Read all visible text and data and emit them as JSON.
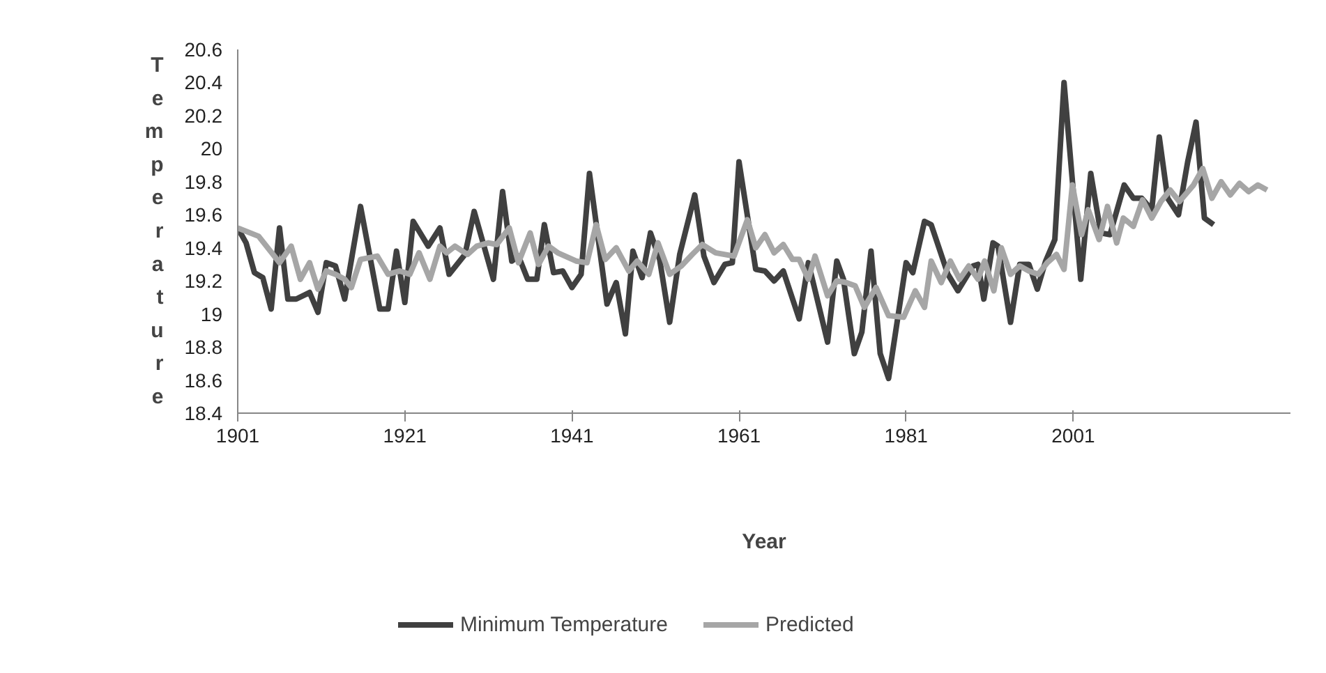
{
  "chart_data": {
    "type": "line",
    "xlabel": "Year",
    "ylabel": "Temperature",
    "xlim": [
      1901,
      2027
    ],
    "xticks": [
      1901,
      1921,
      1941,
      1961,
      1981,
      2001
    ],
    "ylim": [
      18.4,
      20.6
    ],
    "yticks": [
      18.4,
      18.6,
      18.8,
      19,
      19.2,
      19.4,
      19.6,
      19.8,
      20,
      20.2,
      20.4,
      20.6
    ],
    "legend": "bottom",
    "series": [
      {
        "name": "Minimum Temperature",
        "color": "#404040",
        "x": [
          1901,
          1902,
          1903,
          1904,
          1905,
          1906,
          1907,
          1908,
          1909.6,
          1910.6,
          1911.6,
          1912.7,
          1913.8,
          1915.7,
          1918,
          1919,
          1920,
          1921,
          1922,
          1923.8,
          1925.2,
          1926.3,
          1928.2,
          1929.3,
          1931.6,
          1932.7,
          1933.8,
          1934.6,
          1935.7,
          1936.8,
          1937.7,
          1938.8,
          1939.9,
          1941,
          1942.1,
          1943.1,
          1945.2,
          1946.3,
          1947.4,
          1948.3,
          1949.4,
          1950.4,
          1951.5,
          1952.7,
          1953.9,
          1955.7,
          1956.8,
          1958,
          1959.3,
          1960.2,
          1961,
          1963,
          1964.1,
          1965.2,
          1966.3,
          1968.2,
          1969.3,
          1971.6,
          1972.7,
          1973.5,
          1974.8,
          1975.7,
          1976.8,
          1977.9,
          1978.9,
          1981,
          1981.8,
          1983.2,
          1984,
          1986,
          1987.2,
          1989,
          1989.6,
          1990.3,
          1991.4,
          1992,
          1993.5,
          1994.6,
          1995.7,
          1996.7,
          1997.7,
          1998.8,
          1999.9,
          2001.9,
          2003.1,
          2004.3,
          2005.4,
          2007.1,
          2008.2,
          2009.2,
          2010.4,
          2011.3,
          2012.3,
          2013.6,
          2014.7,
          2015.7,
          2016.7,
          2017.8
        ],
        "values": [
          19.52,
          19.43,
          19.25,
          19.22,
          19.03,
          19.52,
          19.09,
          19.09,
          19.13,
          19.01,
          19.31,
          19.29,
          19.09,
          19.65,
          19.03,
          19.03,
          19.38,
          19.07,
          19.56,
          19.41,
          19.52,
          19.24,
          19.36,
          19.62,
          19.21,
          19.74,
          19.32,
          19.35,
          19.21,
          19.21,
          19.54,
          19.25,
          19.26,
          19.16,
          19.24,
          19.85,
          19.06,
          19.19,
          18.88,
          19.38,
          19.22,
          19.49,
          19.33,
          18.95,
          19.36,
          19.72,
          19.35,
          19.19,
          19.3,
          19.31,
          19.92,
          19.27,
          19.26,
          19.2,
          19.26,
          18.97,
          19.31,
          18.83,
          19.32,
          19.21,
          18.76,
          18.89,
          19.38,
          18.76,
          18.61,
          19.31,
          19.25,
          19.56,
          19.54,
          19.24,
          19.14,
          19.29,
          19.3,
          19.09,
          19.43,
          19.41,
          18.95,
          19.3,
          19.3,
          19.15,
          19.32,
          19.45,
          20.4,
          19.21,
          19.85,
          19.49,
          19.48,
          19.78,
          19.7,
          19.7,
          19.63,
          20.07,
          19.7,
          19.6,
          19.92,
          20.16,
          19.58,
          19.54
        ]
      },
      {
        "name": "Predicted",
        "color": "#a6a6a6",
        "x": [
          1901,
          1903.5,
          1906,
          1907.4,
          1908.5,
          1909.6,
          1910.6,
          1911.6,
          1912.7,
          1913.8,
          1914.6,
          1915.7,
          1917.7,
          1919,
          1920.4,
          1921.6,
          1922.7,
          1924,
          1925.2,
          1926,
          1927,
          1928.5,
          1929.6,
          1931,
          1932,
          1933.5,
          1934.6,
          1936,
          1937,
          1938.2,
          1939.3,
          1941.5,
          1942.8,
          1943.9,
          1945,
          1946.3,
          1947.8,
          1948.8,
          1950.2,
          1951.3,
          1952.7,
          1954.1,
          1955.4,
          1956.6,
          1958.2,
          1960.4,
          1962,
          1963,
          1964.1,
          1965.2,
          1966.3,
          1967.4,
          1968.2,
          1969.3,
          1970.1,
          1971.6,
          1972.7,
          1973.8,
          1974.9,
          1976,
          1977.4,
          1978.9,
          1980.7,
          1982.1,
          1983.2,
          1984,
          1985.2,
          1986.3,
          1987.4,
          1988.5,
          1989.6,
          1990.4,
          1991.5,
          1992.4,
          1993.5,
          1994.6,
          1995.7,
          1996.8,
          1997.9,
          1999,
          1999.9,
          2000.9,
          2002,
          2002.8,
          2004.1,
          2005.1,
          2006.2,
          2007,
          2008.2,
          2009.3,
          2010.4,
          2011.5,
          2012.6,
          2013.7,
          2015.4,
          2016.5,
          2017.6,
          2018.7,
          2019.8,
          2020.9,
          2022,
          2023.1,
          2024.2
        ],
        "values": [
          19.52,
          19.47,
          19.31,
          19.41,
          19.21,
          19.31,
          19.15,
          19.26,
          19.24,
          19.21,
          19.16,
          19.33,
          19.35,
          19.24,
          19.26,
          19.24,
          19.37,
          19.21,
          19.41,
          19.37,
          19.41,
          19.36,
          19.41,
          19.43,
          19.42,
          19.52,
          19.31,
          19.49,
          19.3,
          19.41,
          19.37,
          19.32,
          19.31,
          19.54,
          19.33,
          19.4,
          19.26,
          19.32,
          19.24,
          19.43,
          19.24,
          19.29,
          19.36,
          19.42,
          19.37,
          19.35,
          19.57,
          19.4,
          19.48,
          19.37,
          19.42,
          19.33,
          19.33,
          19.21,
          19.35,
          19.11,
          19.2,
          19.19,
          19.17,
          19.04,
          19.16,
          18.99,
          18.98,
          19.14,
          19.04,
          19.32,
          19.19,
          19.32,
          19.21,
          19.29,
          19.21,
          19.32,
          19.14,
          19.4,
          19.24,
          19.29,
          19.26,
          19.24,
          19.31,
          19.36,
          19.27,
          19.78,
          19.48,
          19.63,
          19.45,
          19.65,
          19.43,
          19.58,
          19.53,
          19.69,
          19.58,
          19.68,
          19.75,
          19.68,
          19.78,
          19.88,
          19.7,
          19.8,
          19.72,
          19.79,
          19.74,
          19.78,
          19.75
        ]
      }
    ]
  }
}
